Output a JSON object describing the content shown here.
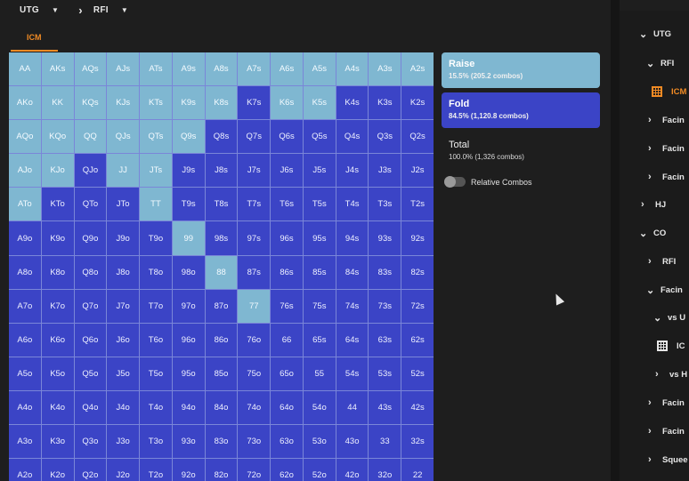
{
  "breadcrumb": [
    {
      "label": "UTG"
    },
    {
      "label": "RFI"
    }
  ],
  "tab": {
    "label": "ICM"
  },
  "grid": {
    "hands": [
      [
        "AA",
        "AKs",
        "AQs",
        "AJs",
        "ATs",
        "A9s",
        "A8s",
        "A7s",
        "A6s",
        "A5s",
        "A4s",
        "A3s",
        "A2s"
      ],
      [
        "AKo",
        "KK",
        "KQs",
        "KJs",
        "KTs",
        "K9s",
        "K8s",
        "K7s",
        "K6s",
        "K5s",
        "K4s",
        "K3s",
        "K2s"
      ],
      [
        "AQo",
        "KQo",
        "QQ",
        "QJs",
        "QTs",
        "Q9s",
        "Q8s",
        "Q7s",
        "Q6s",
        "Q5s",
        "Q4s",
        "Q3s",
        "Q2s"
      ],
      [
        "AJo",
        "KJo",
        "QJo",
        "JJ",
        "JTs",
        "J9s",
        "J8s",
        "J7s",
        "J6s",
        "J5s",
        "J4s",
        "J3s",
        "J2s"
      ],
      [
        "ATo",
        "KTo",
        "QTo",
        "JTo",
        "TT",
        "T9s",
        "T8s",
        "T7s",
        "T6s",
        "T5s",
        "T4s",
        "T3s",
        "T2s"
      ],
      [
        "A9o",
        "K9o",
        "Q9o",
        "J9o",
        "T9o",
        "99",
        "98s",
        "97s",
        "96s",
        "95s",
        "94s",
        "93s",
        "92s"
      ],
      [
        "A8o",
        "K8o",
        "Q8o",
        "J8o",
        "T8o",
        "98o",
        "88",
        "87s",
        "86s",
        "85s",
        "84s",
        "83s",
        "82s"
      ],
      [
        "A7o",
        "K7o",
        "Q7o",
        "J7o",
        "T7o",
        "97o",
        "87o",
        "77",
        "76s",
        "75s",
        "74s",
        "73s",
        "72s"
      ],
      [
        "A6o",
        "K6o",
        "Q6o",
        "J6o",
        "T6o",
        "96o",
        "86o",
        "76o",
        "66",
        "65s",
        "64s",
        "63s",
        "62s"
      ],
      [
        "A5o",
        "K5o",
        "Q5o",
        "J5o",
        "T5o",
        "95o",
        "85o",
        "75o",
        "65o",
        "55",
        "54s",
        "53s",
        "52s"
      ],
      [
        "A4o",
        "K4o",
        "Q4o",
        "J4o",
        "T4o",
        "94o",
        "84o",
        "74o",
        "64o",
        "54o",
        "44",
        "43s",
        "42s"
      ],
      [
        "A3o",
        "K3o",
        "Q3o",
        "J3o",
        "T3o",
        "93o",
        "83o",
        "73o",
        "63o",
        "53o",
        "43o",
        "33",
        "32s"
      ],
      [
        "A2o",
        "K2o",
        "Q2o",
        "J2o",
        "T2o",
        "92o",
        "82o",
        "72o",
        "62o",
        "52o",
        "42o",
        "32o",
        "22"
      ]
    ],
    "raise_hands": [
      "AA",
      "AKs",
      "AQs",
      "AJs",
      "ATs",
      "A9s",
      "A8s",
      "A7s",
      "A6s",
      "A5s",
      "A4s",
      "A3s",
      "A2s",
      "AKo",
      "KK",
      "KQs",
      "KJs",
      "KTs",
      "K9s",
      "K8s",
      "K6s",
      "K5s",
      "AQo",
      "KQo",
      "QQ",
      "QJs",
      "QTs",
      "Q9s",
      "AJo",
      "KJo",
      "JJ",
      "JTs",
      "ATo",
      "TT",
      "99",
      "88",
      "77"
    ]
  },
  "actions": {
    "raise": {
      "label": "Raise",
      "detail": "15.5% (205.2 combos)",
      "color": "#7fb7d1"
    },
    "fold": {
      "label": "Fold",
      "detail": "84.5% (1,120.8 combos)",
      "color": "#3b44c6"
    },
    "total": {
      "label": "Total",
      "detail": "100.0% (1,326 combos)"
    }
  },
  "relative_combos": {
    "label": "Relative Combos",
    "enabled": false
  },
  "accent_color": "#f08a24",
  "tree": [
    {
      "label": "UTG",
      "arrow": "chevron-down"
    },
    {
      "label": "RFI",
      "arrow": "chevron-down"
    },
    {
      "label": "ICM",
      "arrow": "grid-icon",
      "active": true
    },
    {
      "label": "Facin",
      "arrow": "chevron-right"
    },
    {
      "label": "Facin",
      "arrow": "chevron-right"
    },
    {
      "label": "Facin",
      "arrow": "chevron-right"
    },
    {
      "label": "HJ",
      "arrow": "chevron-right"
    },
    {
      "label": "CO",
      "arrow": "chevron-down"
    },
    {
      "label": "RFI",
      "arrow": "chevron-right"
    },
    {
      "label": "Facin",
      "arrow": "chevron-down"
    },
    {
      "label": "vs U",
      "arrow": "chevron-down"
    },
    {
      "label": "IC",
      "arrow": "grid-icon"
    },
    {
      "label": "vs H",
      "arrow": "chevron-right"
    },
    {
      "label": "Facin",
      "arrow": "chevron-right"
    },
    {
      "label": "Facin",
      "arrow": "chevron-right"
    },
    {
      "label": "Squee",
      "arrow": "chevron-right"
    }
  ]
}
